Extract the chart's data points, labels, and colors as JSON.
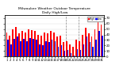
{
  "title": "Milwaukee Weather Outdoor Temperature\nDaily High/Low",
  "high_values": [
    44,
    38,
    50,
    54,
    42,
    46,
    44,
    50,
    48,
    46,
    40,
    38,
    44,
    42,
    46,
    44,
    36,
    38,
    26,
    28,
    22,
    18,
    30,
    28,
    40,
    52,
    42,
    36,
    50,
    64,
    58
  ],
  "low_values": [
    30,
    22,
    32,
    36,
    28,
    32,
    28,
    34,
    32,
    30,
    22,
    20,
    28,
    26,
    30,
    28,
    18,
    20,
    10,
    12,
    6,
    2,
    14,
    12,
    22,
    36,
    26,
    18,
    30,
    46,
    38
  ],
  "high_color": "#ff0000",
  "low_color": "#0000ff",
  "dashed_line_x": [
    18.5,
    22.5
  ],
  "ylim": [
    0,
    75
  ],
  "yticks": [
    0,
    10,
    20,
    30,
    40,
    50,
    60,
    70
  ],
  "background": "#ffffff",
  "legend_labels": [
    "High",
    "Low"
  ]
}
